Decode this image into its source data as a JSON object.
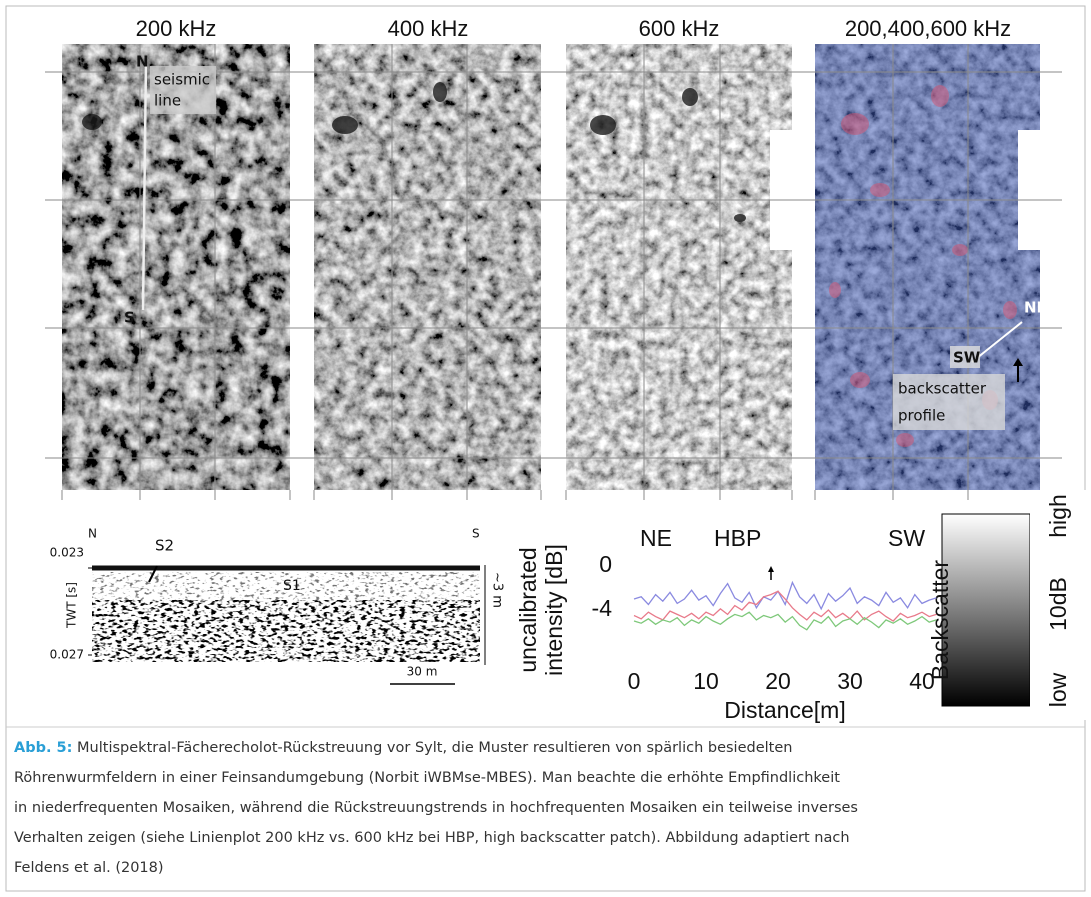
{
  "panels": {
    "titles": [
      "200 kHz",
      "400 kHz",
      "600 kHz",
      "200,400,600 kHz"
    ],
    "annotations": {
      "n": "N",
      "seismic_line": [
        "seismic",
        "line"
      ],
      "s": "S",
      "ne": "NE",
      "sw": "SW",
      "backscatter_profile": [
        "backscatter",
        "profile"
      ]
    }
  },
  "seismic": {
    "n": "N",
    "s": "S",
    "s2": "S2",
    "s1": "S1",
    "top_time": "0.023",
    "bottom_time": "0.027",
    "axis_label": "TWT [s]",
    "depth": "~3 m",
    "scale": "30 m"
  },
  "chart_data": {
    "type": "line",
    "ylabel": [
      "uncalibrated",
      "intensity [dB]"
    ],
    "xlabel": "Distance[m]",
    "annotations": {
      "ne": "NE",
      "hbp": "HBP",
      "sw": "SW"
    },
    "x": [
      0,
      1,
      2,
      3,
      4,
      5,
      6,
      7,
      8,
      9,
      10,
      11,
      12,
      13,
      14,
      15,
      16,
      17,
      18,
      19,
      20,
      21,
      22,
      23,
      24,
      25,
      26,
      27,
      28,
      29,
      30,
      31,
      32,
      33,
      34,
      35,
      36,
      37,
      38,
      39,
      40,
      41,
      42
    ],
    "series": [
      {
        "color": "#8a8ae0",
        "values": [
          -3,
          -2.8,
          -3.5,
          -2.6,
          -3.2,
          -2.4,
          -3.4,
          -3,
          -2.2,
          -3.1,
          -2.7,
          -3.6,
          -2.5,
          -1.6,
          -2.9,
          -3.3,
          -2.4,
          -3.8,
          -2.8,
          -3.1,
          -2.3,
          -3.5,
          -1.5,
          -2.8,
          -3.4,
          -2.6,
          -3.9,
          -2.5,
          -3.2,
          -2.7,
          -2,
          -3.4,
          -2.8,
          -3.1,
          -3.6,
          -2.4,
          -3.3,
          -2.9,
          -3.8,
          -2.6,
          -3.4,
          -3.1,
          -2.9
        ]
      },
      {
        "color": "#e87a8a",
        "values": [
          -4.5,
          -4.8,
          -4.2,
          -4.6,
          -4.9,
          -4.1,
          -4.4,
          -4.7,
          -4.3,
          -4.8,
          -4.2,
          -4.5,
          -3.9,
          -4.4,
          -3.6,
          -4,
          -3.3,
          -3.5,
          -2.8,
          -2.6,
          -2.3,
          -3,
          -3.8,
          -4.4,
          -4.9,
          -4.2,
          -4.6,
          -4,
          -4.7,
          -4.3,
          -4.8,
          -4.1,
          -4.9,
          -4.4,
          -4.1,
          -4.6,
          -5,
          -4.3,
          -4.7,
          -4.5,
          -4.2,
          -4.6,
          -4.4
        ]
      },
      {
        "color": "#7ec87a",
        "values": [
          -5,
          -5.2,
          -4.8,
          -5.3,
          -4.9,
          -5.1,
          -4.7,
          -5.4,
          -4.9,
          -5.2,
          -4.6,
          -5,
          -5.3,
          -4.8,
          -4.4,
          -4.6,
          -4.2,
          -4.9,
          -4.5,
          -4.7,
          -4.4,
          -5.1,
          -4.6,
          -5.4,
          -5.8,
          -4.9,
          -5.2,
          -4.6,
          -5.5,
          -5,
          -4.8,
          -5.3,
          -4.7,
          -5.1,
          -5.6,
          -4.9,
          -5.2,
          -4.8,
          -5.3,
          -5,
          -4.6,
          -5.1,
          -4.9
        ]
      }
    ],
    "xlim": [
      0,
      42
    ],
    "xticks": [
      0,
      10,
      20,
      30,
      40
    ],
    "ylim": [
      -6.5,
      1
    ],
    "yticks": [
      0,
      -4
    ],
    "grid": false
  },
  "colorbar": {
    "high": "high",
    "mid": "10dB",
    "low": "low",
    "label": "Backscatter"
  },
  "caption": {
    "label": "Abb. 5:",
    "lines": [
      "Multispektral-Fächerecholot-Rückstreuung vor Sylt, die Muster resultieren von spärlich besiedelten",
      "Röhrenwurmfeldern in einer Feinsandumgebung (Norbit iWBMse-MBES). Man beachte die erhöhte Empfindlichkeit",
      "in niederfrequenten Mosaiken, während die Rückstreuungstrends in hochfrequenten Mosaiken ein teilweise inverses",
      "Verhalten zeigen (siehe Linienplot 200 kHz vs. 600 kHz bei HBP, high backscatter patch). Abbildung adaptiert nach",
      "Feldens et al. (2018)"
    ]
  }
}
